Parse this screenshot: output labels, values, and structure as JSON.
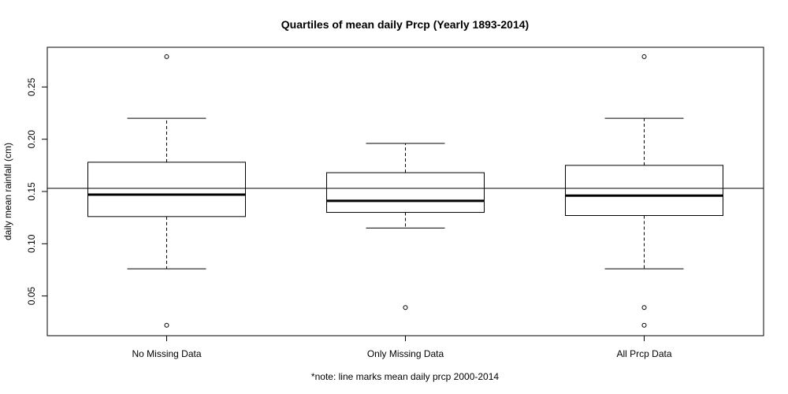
{
  "chart_data": {
    "type": "box",
    "title": "Quartiles of mean daily Prcp (Yearly 1893-2014)",
    "xlabel": "*note: line marks mean daily prcp 2000-2014",
    "ylabel": "daily mean rainfall (cm)",
    "ylim": [
      0.012,
      0.288
    ],
    "yticks": [
      "0.05",
      "0.10",
      "0.15",
      "0.20",
      "0.25"
    ],
    "ytick_values": [
      0.05,
      0.1,
      0.15,
      0.2,
      0.25
    ],
    "categories": [
      "No Missing Data",
      "Only Missing Data",
      "All Prcp Data"
    ],
    "boxes": [
      {
        "name": "No Missing Data",
        "whisker_low": 0.076,
        "q1": 0.126,
        "median": 0.147,
        "q3": 0.178,
        "whisker_high": 0.22,
        "outliers": [
          0.279,
          0.022
        ]
      },
      {
        "name": "Only Missing Data",
        "whisker_low": 0.115,
        "q1": 0.13,
        "median": 0.141,
        "q3": 0.168,
        "whisker_high": 0.196,
        "outliers": [
          0.039
        ]
      },
      {
        "name": "All Prcp Data",
        "whisker_low": 0.076,
        "q1": 0.127,
        "median": 0.146,
        "q3": 0.175,
        "whisker_high": 0.22,
        "outliers": [
          0.279,
          0.039,
          0.022
        ]
      }
    ],
    "reference_line": 0.153,
    "grid": false,
    "legend": "none"
  }
}
